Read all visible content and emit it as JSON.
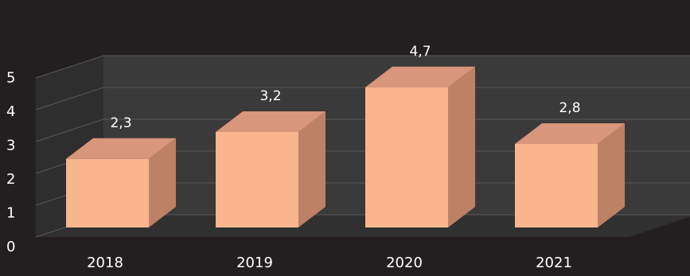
{
  "chart_data": {
    "type": "bar",
    "title": "",
    "xlabel": "",
    "ylabel": "",
    "categories": [
      "2018",
      "2019",
      "2020",
      "2021"
    ],
    "values": [
      2.3,
      3.2,
      4.7,
      2.8
    ],
    "data_labels": [
      "2,3",
      "3,2",
      "4,7",
      "2,8"
    ],
    "ylim": [
      0,
      5
    ],
    "yticks": [
      "0",
      "1",
      "2",
      "3",
      "4",
      "5"
    ],
    "grid": true,
    "style": "3d-column",
    "colors": {
      "background": "#231f20",
      "wall": "#3a3a3a",
      "floor": "#303030",
      "grid": "#585858",
      "bar_front": "#f8b58e",
      "bar_top": "#d8967a",
      "bar_side": "#bd8166",
      "text": "#ffffff"
    }
  }
}
